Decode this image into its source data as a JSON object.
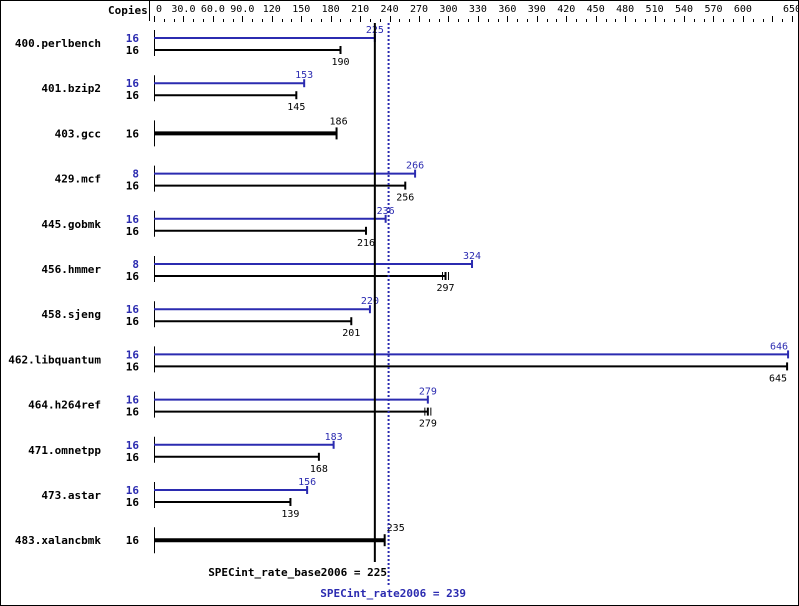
{
  "chart_data": {
    "type": "bar",
    "orientation": "horizontal",
    "header_label": "Copies",
    "xlim": [
      0,
      650
    ],
    "ticks": [
      0,
      30,
      60,
      90,
      120,
      150,
      180,
      210,
      240,
      270,
      300,
      330,
      360,
      390,
      420,
      450,
      480,
      510,
      540,
      570,
      600,
      650
    ],
    "tick_labels": [
      "0",
      "30.0",
      "60.0",
      "90.0",
      "120",
      "150",
      "180",
      "210",
      "240",
      "270",
      "300",
      "330",
      "360",
      "390",
      "420",
      "450",
      "480",
      "510",
      "540",
      "570",
      "600",
      "650"
    ],
    "minor_tick_step": 10,
    "colors": {
      "base": "#000000",
      "peak": "#2b2bb0"
    },
    "benchmarks": [
      {
        "name": "400.perlbench",
        "peak_copies": "16",
        "peak": 225,
        "base_copies": "16",
        "base": 190
      },
      {
        "name": "401.bzip2",
        "peak_copies": "16",
        "peak": 153,
        "base_copies": "16",
        "base": 145
      },
      {
        "name": "403.gcc",
        "peak_copies": null,
        "peak": null,
        "base_copies": "16",
        "base": 186
      },
      {
        "name": "429.mcf",
        "peak_copies": "8",
        "peak": 266,
        "base_copies": "16",
        "base": 256
      },
      {
        "name": "445.gobmk",
        "peak_copies": "16",
        "peak": 236,
        "base_copies": "16",
        "base": 216
      },
      {
        "name": "456.hmmer",
        "peak_copies": "8",
        "peak": 324,
        "base_copies": "16",
        "base": 297,
        "base_double_tick": true
      },
      {
        "name": "458.sjeng",
        "peak_copies": "16",
        "peak": 220,
        "base_copies": "16",
        "base": 201
      },
      {
        "name": "462.libquantum",
        "peak_copies": "16",
        "peak": 646,
        "base_copies": "16",
        "base": 645
      },
      {
        "name": "464.h264ref",
        "peak_copies": "16",
        "peak": 279,
        "base_copies": "16",
        "base": 279,
        "base_double_tick": true
      },
      {
        "name": "471.omnetpp",
        "peak_copies": "16",
        "peak": 183,
        "base_copies": "16",
        "base": 168
      },
      {
        "name": "473.astar",
        "peak_copies": "16",
        "peak": 156,
        "base_copies": "16",
        "base": 139
      },
      {
        "name": "483.xalancbmk",
        "peak_copies": null,
        "peak": null,
        "base_copies": "16",
        "base": 235
      }
    ],
    "base_mean": {
      "label": "SPECint_rate_base2006 = 225",
      "value": 225
    },
    "peak_mean": {
      "label": "SPECint_rate2006 = 239",
      "value": 239
    }
  }
}
